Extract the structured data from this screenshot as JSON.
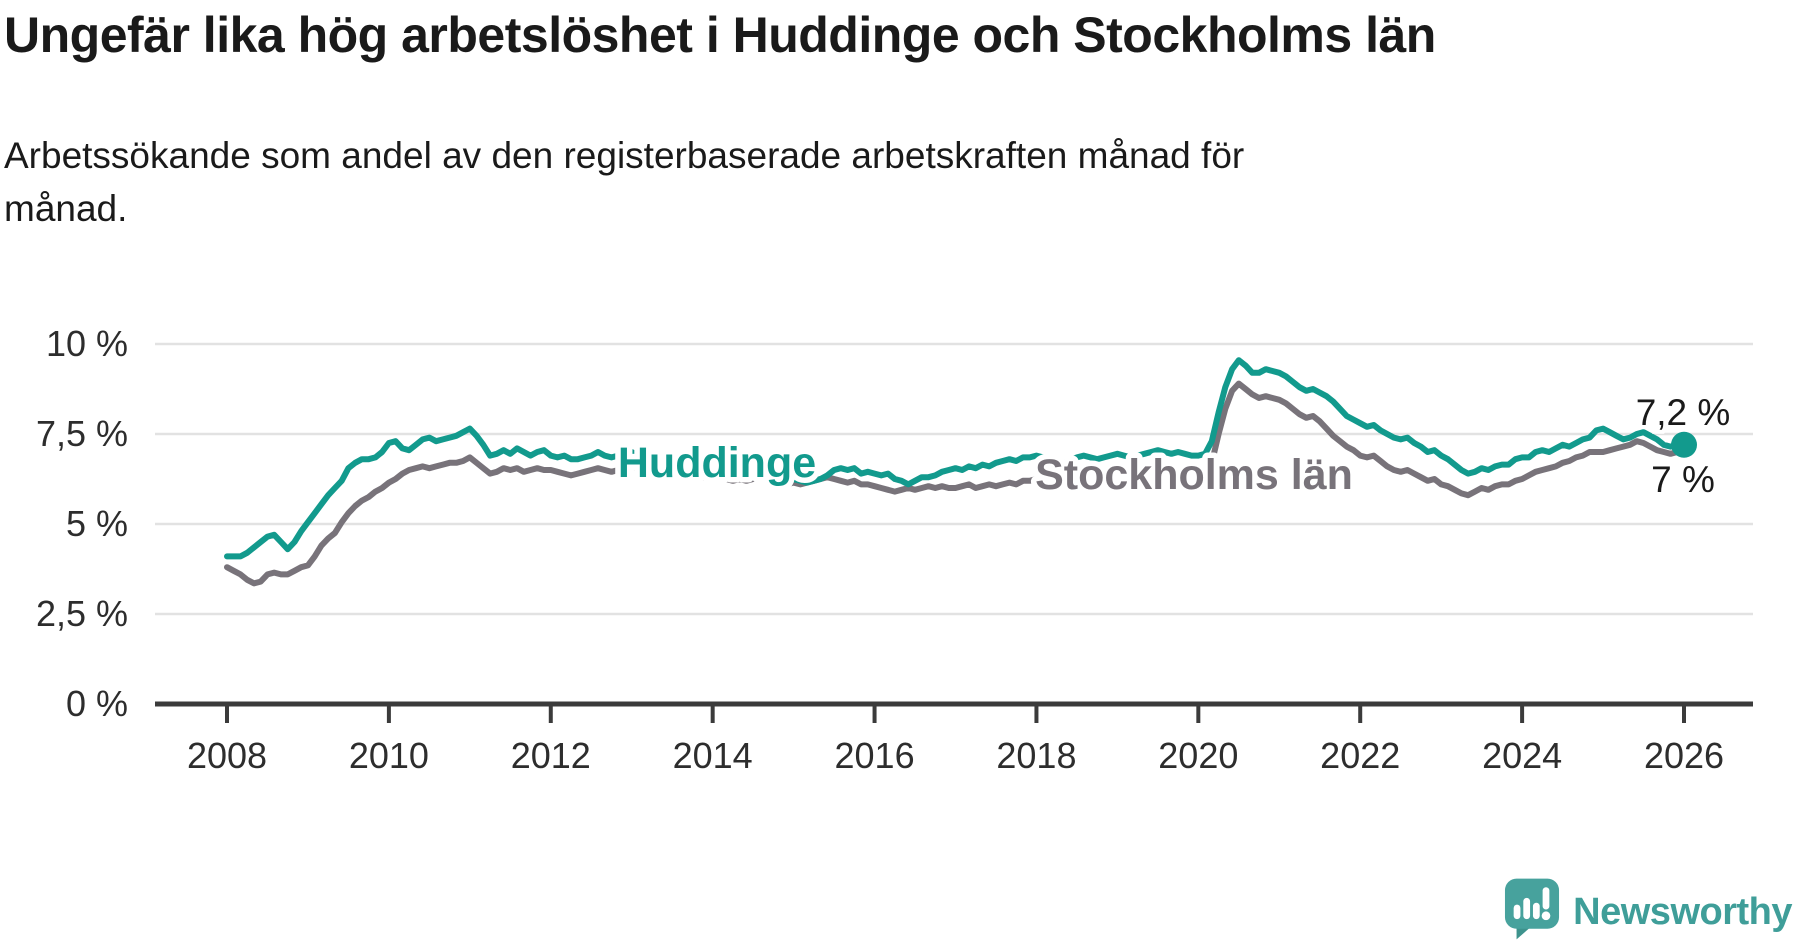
{
  "header": {
    "title": "Ungefär lika hög arbetslöshet i Huddinge och Stockholms län",
    "subtitle_lines": [
      "Arbetssökande som andel av den registerbaserade arbetskraften månad för",
      "månad."
    ]
  },
  "chart_data": {
    "type": "line",
    "title": "Ungefär lika hög arbetslöshet i Huddinge och Stockholms län",
    "subtitle": "Arbetssökande som andel av den registerbaserade arbetskraften månad för månad.",
    "unit": "%",
    "frequency": "monthly",
    "start": "2008-01",
    "end": "2026-01",
    "grid": true,
    "legend_position": "inline-labels",
    "ylim": [
      0,
      10
    ],
    "y_axis": {
      "ticks": [
        {
          "label": "10 %",
          "value": 10
        },
        {
          "label": "7,5 %",
          "value": 7.5
        },
        {
          "label": "5 %",
          "value": 5
        },
        {
          "label": "2,5 %",
          "value": 2.5
        },
        {
          "label": "0 %",
          "value": 0
        }
      ]
    },
    "x_axis": {
      "ticks": [
        {
          "label": "2008",
          "year": 2008
        },
        {
          "label": "2010",
          "year": 2010
        },
        {
          "label": "2012",
          "year": 2012
        },
        {
          "label": "2014",
          "year": 2014
        },
        {
          "label": "2016",
          "year": 2016
        },
        {
          "label": "2018",
          "year": 2018
        },
        {
          "label": "2020",
          "year": 2020
        },
        {
          "label": "2022",
          "year": 2022
        },
        {
          "label": "2024",
          "year": 2024
        },
        {
          "label": "2026",
          "year": 2026
        }
      ]
    },
    "series": [
      {
        "id": "huddinge",
        "name": "Huddinge",
        "color": "#129a8d",
        "end_label": "7,2 %",
        "end_marker": true,
        "values": [
          4.1,
          4.1,
          4.1,
          4.2,
          4.35,
          4.5,
          4.65,
          4.7,
          4.5,
          4.3,
          4.5,
          4.8,
          5.05,
          5.3,
          5.55,
          5.8,
          6,
          6.2,
          6.55,
          6.7,
          6.8,
          6.8,
          6.85,
          7,
          7.25,
          7.3,
          7.1,
          7.05,
          7.2,
          7.35,
          7.4,
          7.3,
          7.35,
          7.4,
          7.45,
          7.55,
          7.65,
          7.45,
          7.2,
          6.9,
          6.95,
          7.05,
          6.95,
          7.1,
          7,
          6.9,
          7,
          7.05,
          6.9,
          6.85,
          6.9,
          6.8,
          6.8,
          6.85,
          6.9,
          7,
          6.9,
          6.85,
          6.9,
          6.95,
          7,
          6.9,
          6.8,
          6.7,
          6.6,
          6.55,
          6.6,
          6.65,
          6.6,
          6.5,
          6.45,
          6.4,
          6.45,
          6.5,
          6.4,
          6.35,
          6.3,
          6.25,
          6.3,
          6.35,
          6.3,
          6.25,
          6.2,
          6.2,
          6.25,
          6.2,
          6.15,
          6.2,
          6.25,
          6.35,
          6.5,
          6.55,
          6.5,
          6.55,
          6.4,
          6.45,
          6.4,
          6.35,
          6.4,
          6.25,
          6.2,
          6.1,
          6.2,
          6.3,
          6.3,
          6.35,
          6.45,
          6.5,
          6.55,
          6.5,
          6.6,
          6.55,
          6.65,
          6.6,
          6.7,
          6.75,
          6.8,
          6.75,
          6.85,
          6.85,
          6.9,
          6.85,
          6.8,
          6.75,
          6.7,
          6.75,
          6.85,
          6.9,
          6.85,
          6.8,
          6.85,
          6.9,
          6.95,
          6.9,
          6.85,
          6.9,
          6.95,
          7,
          7.05,
          7,
          6.95,
          7,
          6.95,
          6.9,
          6.9,
          6.95,
          7.3,
          8.1,
          8.8,
          9.3,
          9.55,
          9.4,
          9.2,
          9.2,
          9.3,
          9.25,
          9.2,
          9.1,
          8.95,
          8.8,
          8.7,
          8.75,
          8.65,
          8.55,
          8.4,
          8.2,
          8,
          7.9,
          7.8,
          7.7,
          7.75,
          7.6,
          7.5,
          7.4,
          7.35,
          7.4,
          7.25,
          7.15,
          7,
          7.05,
          6.9,
          6.8,
          6.65,
          6.5,
          6.4,
          6.45,
          6.55,
          6.5,
          6.6,
          6.65,
          6.65,
          6.8,
          6.85,
          6.85,
          7,
          7.05,
          7,
          7.1,
          7.2,
          7.15,
          7.25,
          7.35,
          7.4,
          7.6,
          7.65,
          7.55,
          7.45,
          7.35,
          7.4,
          7.5,
          7.55,
          7.45,
          7.35,
          7.2,
          7.15,
          7.2,
          7.2
        ]
      },
      {
        "id": "stockholms-lan",
        "name": "Stockholms län",
        "color": "#78737a",
        "end_label": "7 %",
        "end_marker": false,
        "values": [
          3.8,
          3.7,
          3.6,
          3.45,
          3.35,
          3.4,
          3.6,
          3.65,
          3.6,
          3.6,
          3.7,
          3.8,
          3.85,
          4.1,
          4.4,
          4.6,
          4.75,
          5.05,
          5.3,
          5.5,
          5.65,
          5.75,
          5.9,
          6,
          6.15,
          6.25,
          6.4,
          6.5,
          6.55,
          6.6,
          6.55,
          6.6,
          6.65,
          6.7,
          6.7,
          6.75,
          6.85,
          6.7,
          6.55,
          6.4,
          6.45,
          6.55,
          6.5,
          6.55,
          6.45,
          6.5,
          6.55,
          6.5,
          6.5,
          6.45,
          6.4,
          6.35,
          6.4,
          6.45,
          6.5,
          6.55,
          6.5,
          6.45,
          6.5,
          6.55,
          6.6,
          6.55,
          6.5,
          6.45,
          6.4,
          6.35,
          6.4,
          6.45,
          6.4,
          6.35,
          6.3,
          6.3,
          6.35,
          6.3,
          6.25,
          6.2,
          6.25,
          6.2,
          6.25,
          6.3,
          6.25,
          6.2,
          6.15,
          6.1,
          6.15,
          6.1,
          6.15,
          6.2,
          6.25,
          6.3,
          6.25,
          6.2,
          6.15,
          6.2,
          6.1,
          6.1,
          6.05,
          6,
          5.95,
          5.9,
          5.95,
          6,
          5.95,
          6,
          6.05,
          6,
          6.05,
          6,
          6,
          6.05,
          6.1,
          6,
          6.05,
          6.1,
          6.05,
          6.1,
          6.15,
          6.1,
          6.2,
          6.2,
          6.25,
          6.2,
          6.15,
          6.2,
          6.15,
          6.2,
          6.25,
          6.2,
          6.15,
          6.2,
          6.25,
          6.2,
          6.25,
          6.3,
          6.25,
          6.3,
          6.35,
          6.4,
          6.45,
          6.4,
          6.35,
          6.3,
          6.35,
          6.3,
          6.3,
          6.35,
          6.7,
          7.5,
          8.2,
          8.7,
          8.9,
          8.75,
          8.6,
          8.5,
          8.55,
          8.5,
          8.45,
          8.35,
          8.2,
          8.05,
          7.95,
          8,
          7.85,
          7.65,
          7.45,
          7.3,
          7.15,
          7.05,
          6.9,
          6.85,
          6.9,
          6.75,
          6.6,
          6.5,
          6.45,
          6.5,
          6.4,
          6.3,
          6.2,
          6.25,
          6.1,
          6.05,
          5.95,
          5.85,
          5.8,
          5.9,
          6,
          5.95,
          6.05,
          6.1,
          6.1,
          6.2,
          6.25,
          6.35,
          6.45,
          6.5,
          6.55,
          6.6,
          6.7,
          6.75,
          6.85,
          6.9,
          7,
          7,
          7,
          7.05,
          7.1,
          7.15,
          7.2,
          7.3,
          7.25,
          7.15,
          7.05,
          7,
          6.95,
          7,
          7
        ]
      }
    ],
    "colors": {
      "huddinge": "#129a8d",
      "stockholms_lan": "#78737a",
      "gridline": "#e2e2e2",
      "axis": "#3b3b3b",
      "text": "#1a1a1a",
      "annotation": "#1a1a1a"
    }
  },
  "footer": {
    "brand": "Newsworthy",
    "brand_color": "#3f9e99",
    "logo_color": "#47a29d"
  }
}
